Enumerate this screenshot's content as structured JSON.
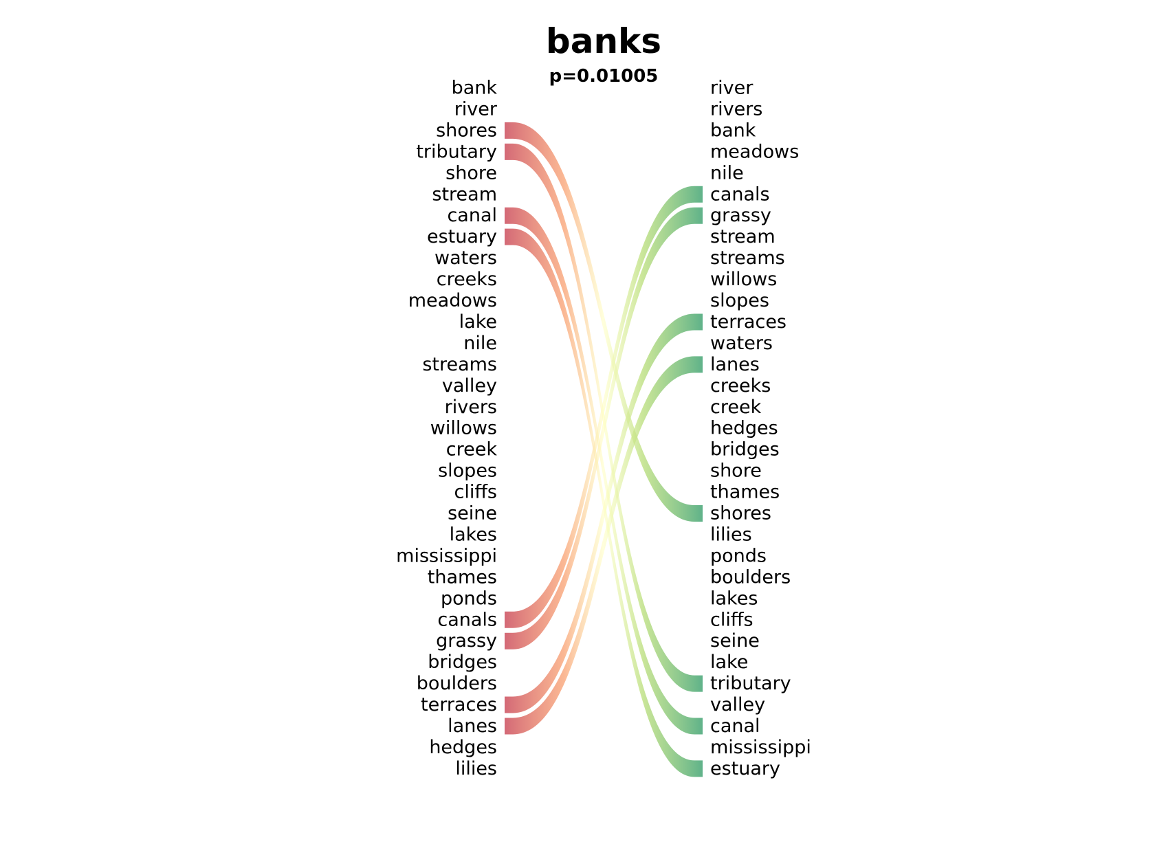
{
  "chart_data": {
    "type": "bump",
    "title": "banks",
    "subtitle": "p=0.01005",
    "left_list": [
      "bank",
      "river",
      "shores",
      "tributary",
      "shore",
      "stream",
      "canal",
      "estuary",
      "waters",
      "creeks",
      "meadows",
      "lake",
      "nile",
      "streams",
      "valley",
      "rivers",
      "willows",
      "creek",
      "slopes",
      "cliffs",
      "seine",
      "lakes",
      "mississippi",
      "thames",
      "ponds",
      "canals",
      "grassy",
      "bridges",
      "boulders",
      "terraces",
      "lanes",
      "hedges",
      "lilies"
    ],
    "right_list": [
      "river",
      "rivers",
      "bank",
      "meadows",
      "nile",
      "canals",
      "grassy",
      "stream",
      "streams",
      "willows",
      "slopes",
      "terraces",
      "waters",
      "lanes",
      "creeks",
      "creek",
      "hedges",
      "bridges",
      "shore",
      "thames",
      "shores",
      "lilies",
      "ponds",
      "boulders",
      "lakes",
      "cliffs",
      "seine",
      "lake",
      "tributary",
      "valley",
      "canal",
      "mississippi",
      "estuary"
    ],
    "links": [
      {
        "word": "shores",
        "left_rank": 2,
        "right_rank": 20
      },
      {
        "word": "tributary",
        "left_rank": 3,
        "right_rank": 28
      },
      {
        "word": "canal",
        "left_rank": 6,
        "right_rank": 30
      },
      {
        "word": "estuary",
        "left_rank": 7,
        "right_rank": 32
      },
      {
        "word": "canals",
        "left_rank": 25,
        "right_rank": 5
      },
      {
        "word": "grassy",
        "left_rank": 26,
        "right_rank": 6
      },
      {
        "word": "terraces",
        "left_rank": 29,
        "right_rank": 11
      },
      {
        "word": "lanes",
        "left_rank": 30,
        "right_rank": 13
      }
    ],
    "colors": {
      "drop": "#d1616f",
      "neutral": "#ffffbf",
      "rise": "#57ae83"
    }
  }
}
